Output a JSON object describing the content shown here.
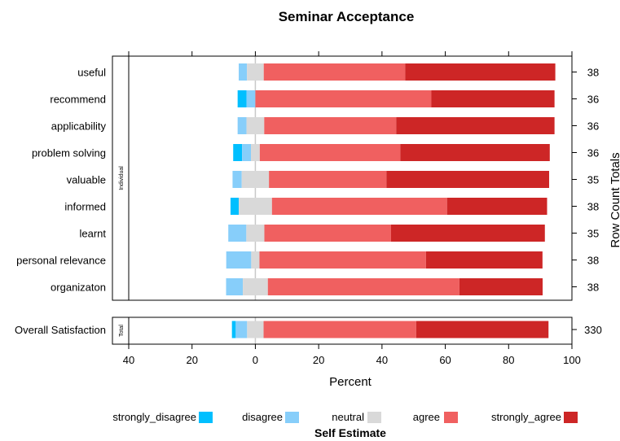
{
  "chart_data": {
    "type": "bar",
    "stacked": "diverging",
    "title": "Seminar Acceptance",
    "xlabel": "Percent",
    "right_axis_label": "Row Count Totals",
    "xlim": [
      -40,
      100
    ],
    "xticks": [
      -40,
      -20,
      0,
      20,
      40,
      60,
      80,
      100
    ],
    "xtick_labels": [
      "40",
      "20",
      "0",
      "20",
      "40",
      "60",
      "80",
      "100"
    ],
    "legend_title": "Self Estimate",
    "legend_position": "bottom",
    "series": [
      {
        "name": "strongly_disagree",
        "color": "#00BFFF"
      },
      {
        "name": "disagree",
        "color": "#87CEFA"
      },
      {
        "name": "neutral",
        "color": "#D9D9D9"
      },
      {
        "name": "agree",
        "color": "#F06060"
      },
      {
        "name": "strongly_agree",
        "color": "#CD2626"
      }
    ],
    "panels": [
      {
        "strip": "Individual",
        "rows": [
          {
            "label": "useful",
            "total": "38",
            "values": [
              0.0,
              2.6,
              5.3,
              44.7,
              47.4
            ]
          },
          {
            "label": "recommend",
            "total": "36",
            "values": [
              2.8,
              2.8,
              0.0,
              55.6,
              38.9
            ]
          },
          {
            "label": "applicability",
            "total": "36",
            "values": [
              0.0,
              2.8,
              5.6,
              41.7,
              50.0
            ]
          },
          {
            "label": "problem solving",
            "total": "36",
            "values": [
              2.8,
              2.8,
              2.8,
              44.4,
              47.2
            ]
          },
          {
            "label": "valuable",
            "total": "35",
            "values": [
              0.0,
              2.9,
              8.6,
              37.1,
              51.4
            ]
          },
          {
            "label": "informed",
            "total": "38",
            "values": [
              2.6,
              0.0,
              10.5,
              55.3,
              31.6
            ]
          },
          {
            "label": "learnt",
            "total": "35",
            "values": [
              0.0,
              5.7,
              5.7,
              40.0,
              48.6
            ]
          },
          {
            "label": "personal relevance",
            "total": "38",
            "values": [
              0.0,
              7.9,
              2.6,
              52.6,
              36.8
            ]
          },
          {
            "label": "organizaton",
            "total": "38",
            "values": [
              0.0,
              5.3,
              7.9,
              60.5,
              26.3
            ]
          }
        ]
      },
      {
        "strip": "Total",
        "rows": [
          {
            "label": "Overall Satisfaction",
            "total": "330",
            "values": [
              1.2,
              3.6,
              5.2,
              48.2,
              41.8
            ]
          }
        ]
      }
    ]
  }
}
